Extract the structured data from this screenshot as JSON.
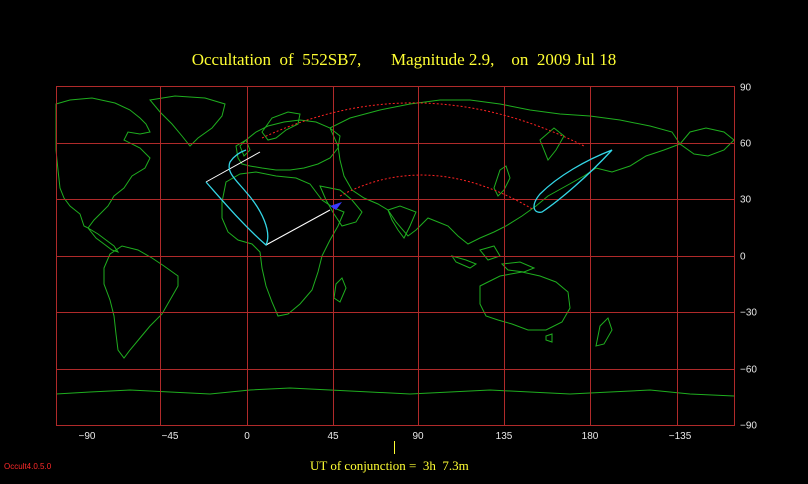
{
  "title": "Occultation  of  552SB7,       Magnitude 2.9,    on  2009 Jul 18",
  "axes": {
    "x_ticks": [
      "−90",
      "−45",
      "0",
      "45",
      "90",
      "135",
      "180",
      "−135"
    ],
    "y_ticks": [
      "90",
      "60",
      "30",
      "0",
      "−30",
      "−60",
      "−90"
    ]
  },
  "conjunction": {
    "text": "UT of conjunction =  3h  7.3m"
  },
  "version": "Occult4.0.5.0",
  "colors": {
    "background": "#000000",
    "grid": "#b02a2a",
    "coast": "#1fae1f",
    "occultation_path": "#33d6e6",
    "sun_limit": "#ffffff",
    "night_limit": "#ff2222",
    "title": "#ffff33",
    "version": "#ff2a2a"
  },
  "map": {
    "projection": "equirectangular",
    "lon_range": [
      -108,
      252
    ],
    "lat_range": [
      -90,
      90
    ],
    "grid_step_deg": 30
  }
}
